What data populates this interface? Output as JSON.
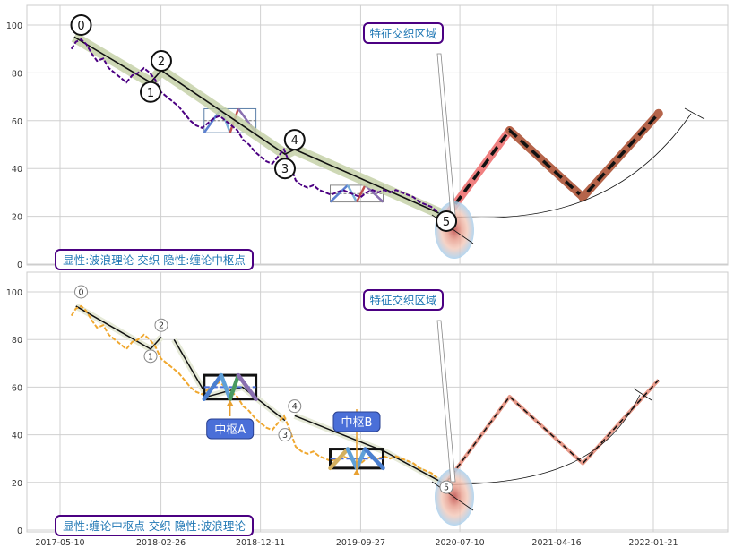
{
  "chart_data": [
    {
      "type": "line",
      "panel": "top",
      "ylim": [
        0,
        105
      ],
      "y_ticks": [
        0,
        20,
        40,
        60,
        80,
        100
      ],
      "x_ticks": [
        "2017-05-10",
        "2018-02-26",
        "2018-12-11",
        "2019-09-27",
        "2020-07-10",
        "2021-04-16",
        "2022-01-21"
      ],
      "grid": true,
      "price_series": {
        "color": "#4b0082",
        "x": [
          "2017-06-12",
          "2017-06-25",
          "2017-07-10",
          "2017-07-25",
          "2017-08-10",
          "2017-08-25",
          "2017-09-12",
          "2017-09-28",
          "2017-10-15",
          "2017-11-01",
          "2017-11-18",
          "2017-12-05",
          "2017-12-22",
          "2018-01-08",
          "2018-01-25",
          "2018-02-10",
          "2018-02-26",
          "2018-03-15",
          "2018-04-01",
          "2018-04-18",
          "2018-05-05",
          "2018-05-22",
          "2018-06-08",
          "2018-06-25",
          "2018-07-12",
          "2018-07-29",
          "2018-08-15",
          "2018-09-01",
          "2018-09-18",
          "2018-10-05",
          "2018-10-22",
          "2018-11-08",
          "2018-11-25",
          "2018-12-11",
          "2018-12-28",
          "2019-01-14",
          "2019-01-31",
          "2019-02-17",
          "2019-03-06",
          "2019-03-23",
          "2019-04-09",
          "2019-04-26",
          "2019-05-13",
          "2019-05-30",
          "2019-06-16",
          "2019-07-03",
          "2019-07-20",
          "2019-08-06",
          "2019-08-23",
          "2019-09-09",
          "2019-09-27",
          "2019-10-14",
          "2019-10-31",
          "2019-11-17",
          "2019-12-04",
          "2019-12-21",
          "2020-01-07",
          "2020-01-24",
          "2020-02-10",
          "2020-02-27",
          "2020-03-15",
          "2020-04-01",
          "2020-04-18",
          "2020-05-05"
        ],
        "y": [
          90,
          93,
          94,
          92,
          88,
          85,
          86,
          82,
          80,
          78,
          76,
          79,
          80,
          82,
          80,
          77,
          72,
          70,
          68,
          66,
          63,
          60,
          58,
          57,
          59,
          61,
          62,
          60,
          58,
          56,
          52,
          50,
          47,
          45,
          43,
          42,
          45,
          48,
          42,
          35,
          33,
          32,
          33,
          31,
          30,
          29,
          30,
          31,
          30,
          29,
          28,
          30,
          31,
          30,
          31,
          30,
          31,
          30,
          29,
          28,
          26,
          25,
          24,
          22
        ]
      },
      "wave_points": [
        {
          "label": "0",
          "x": "2017-07-10",
          "y": 100
        },
        {
          "label": "1",
          "x": "2018-01-27",
          "y": 72
        },
        {
          "label": "2",
          "x": "2018-02-27",
          "y": 85
        },
        {
          "label": "3",
          "x": "2019-02-20",
          "y": 40
        },
        {
          "label": "4",
          "x": "2019-03-20",
          "y": 52
        },
        {
          "label": "5",
          "x": "2020-06-01",
          "y": 18
        }
      ],
      "wave_path": {
        "x": [
          "2017-06-20",
          "2018-01-27",
          "2018-02-27",
          "2019-02-20",
          "2019-03-20",
          "2020-06-01"
        ],
        "y": [
          95,
          76,
          81,
          46,
          48,
          20
        ]
      },
      "forecast": {
        "x": [
          "2020-06-01",
          "2020-12-01",
          "2021-07-01",
          "2022-02-05"
        ],
        "y": [
          20,
          56,
          28,
          63
        ]
      },
      "centers": [
        {
          "name": "A",
          "x_start": "2018-07-01",
          "x_end": "2018-11-28",
          "y_low": 55,
          "y_high": 65
        },
        {
          "name": "B",
          "x_start": "2019-07-01",
          "x_end": "2019-12-01",
          "y_low": 26,
          "y_high": 33
        }
      ],
      "annotations": {
        "region": "特征交织区域",
        "caption": "显性:波浪理论 交织 隐性:缠论中枢点"
      }
    },
    {
      "type": "line",
      "panel": "bottom",
      "ylim": [
        0,
        105
      ],
      "y_ticks": [
        0,
        20,
        40,
        60,
        80,
        100
      ],
      "x_ticks": [
        "2017-05-10",
        "2018-02-26",
        "2018-12-11",
        "2019-09-27",
        "2020-07-10",
        "2021-04-16",
        "2022-01-21"
      ],
      "grid": true,
      "price_series": {
        "color": "#f0a830"
      },
      "wave_points": [
        {
          "label": "0",
          "x": "2017-07-10",
          "y": 100
        },
        {
          "label": "1",
          "x": "2018-01-27",
          "y": 73
        },
        {
          "label": "2",
          "x": "2018-02-27",
          "y": 86
        },
        {
          "label": "3",
          "x": "2019-02-20",
          "y": 40
        },
        {
          "label": "4",
          "x": "2019-03-20",
          "y": 52
        },
        {
          "label": "5",
          "x": "2020-06-01",
          "y": 18
        }
      ],
      "centers": [
        {
          "name": "A",
          "label": "中枢A",
          "x_start": "2018-07-01",
          "x_end": "2018-11-28",
          "y_low": 55,
          "y_high": 65
        },
        {
          "name": "B",
          "label": "中枢B",
          "x_start": "2019-07-01",
          "x_end": "2019-12-01",
          "y_low": 26,
          "y_high": 34
        }
      ],
      "annotations": {
        "region": "特征交织区域",
        "caption": "显性:缠论中枢点 交织 隐性:波浪理论"
      }
    }
  ],
  "colors": {
    "purple": "#4b0082",
    "orange": "#f0a830",
    "olive": "#c5d1a8",
    "salmon": "#f08080",
    "brown": "#b5644a",
    "label_blue": "#1f77b4",
    "center_fill": "#4a6fd8"
  }
}
